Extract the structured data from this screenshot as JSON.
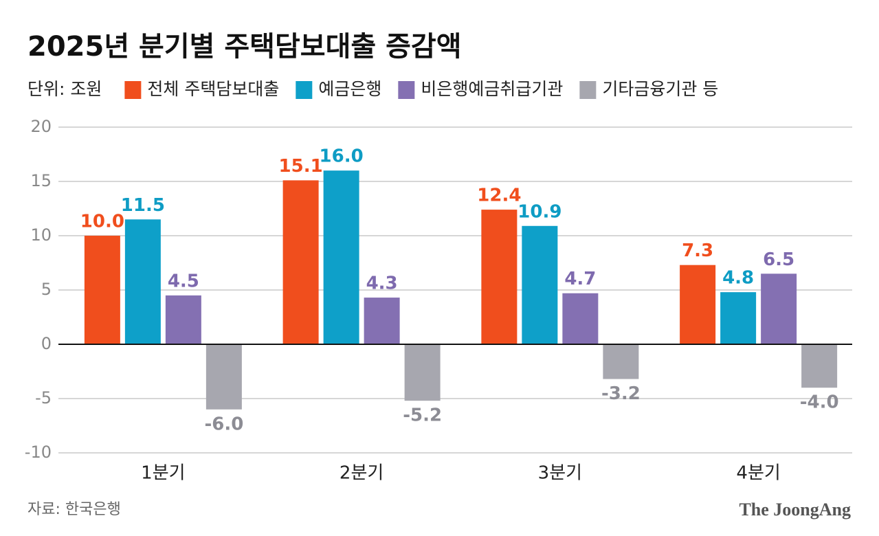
{
  "chart_data": {
    "type": "bar",
    "title": "2025년 분기별 주택담보대출 증감액",
    "unit": "단위: 조원",
    "source": "자료: 한국은행",
    "brand": "The JoongAng",
    "categories": [
      "1분기",
      "2분기",
      "3분기",
      "4분기"
    ],
    "series": [
      {
        "name": "전체 주택담보대출",
        "color": "#f04e1d",
        "label_color": "#f04e1d",
        "values": [
          10.0,
          15.1,
          12.4,
          7.3
        ],
        "value_labels": [
          "10.0",
          "15.1",
          "12.4",
          "7.3"
        ]
      },
      {
        "name": "예금은행",
        "color": "#0ea0c9",
        "label_color": "#0e9cc4",
        "values": [
          11.5,
          16.0,
          10.9,
          4.8
        ],
        "value_labels": [
          "11.5",
          "16.0",
          "10.9",
          "4.8"
        ]
      },
      {
        "name": "비은행예금취급기관",
        "color": "#8470b2",
        "label_color": "#7e6aae",
        "values": [
          4.5,
          4.3,
          4.7,
          6.5
        ],
        "value_labels": [
          "4.5",
          "4.3",
          "4.7",
          "6.5"
        ]
      },
      {
        "name": "기타금융기관 등",
        "color": "#a7a7af",
        "label_color": "#8c8c94",
        "values": [
          -6.0,
          -5.2,
          -3.2,
          -4.0
        ],
        "value_labels": [
          "-6.0",
          "-5.2",
          "-3.2",
          "-4.0"
        ]
      }
    ],
    "ylim": [
      -10,
      20
    ],
    "yticks": [
      -10,
      -5,
      0,
      5,
      10,
      15,
      20
    ],
    "grid": true
  }
}
